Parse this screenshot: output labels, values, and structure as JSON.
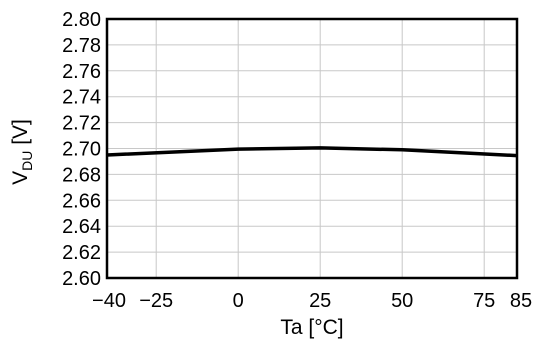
{
  "chart_data": {
    "type": "line",
    "title": "",
    "xlabel": "Ta [°C]",
    "ylabel": {
      "main": "V",
      "subscript": "DU",
      "unit": " [V]"
    },
    "xlim": [
      -40,
      85
    ],
    "ylim": [
      2.6,
      2.8
    ],
    "x_ticks": [
      -40,
      -25,
      0,
      25,
      50,
      75,
      85
    ],
    "x_tick_labels": [
      "−40",
      "−25",
      "0",
      "25",
      "50",
      "75",
      "85"
    ],
    "x_grid": [
      -25,
      0,
      25,
      50,
      75
    ],
    "y_ticks": [
      2.6,
      2.62,
      2.64,
      2.66,
      2.68,
      2.7,
      2.72,
      2.74,
      2.76,
      2.78,
      2.8
    ],
    "y_tick_labels": [
      "2.60",
      "2.62",
      "2.64",
      "2.66",
      "2.68",
      "2.70",
      "2.72",
      "2.74",
      "2.76",
      "2.78",
      "2.80"
    ],
    "grid": true,
    "legend": "none",
    "series": [
      {
        "x": [
          -40,
          0,
          25,
          50,
          85
        ],
        "values": [
          2.695,
          2.6995,
          2.7005,
          2.699,
          2.6945
        ]
      }
    ],
    "colors": {
      "line": "#000000",
      "grid": "#c8c8c8",
      "frame": "#000000"
    }
  }
}
